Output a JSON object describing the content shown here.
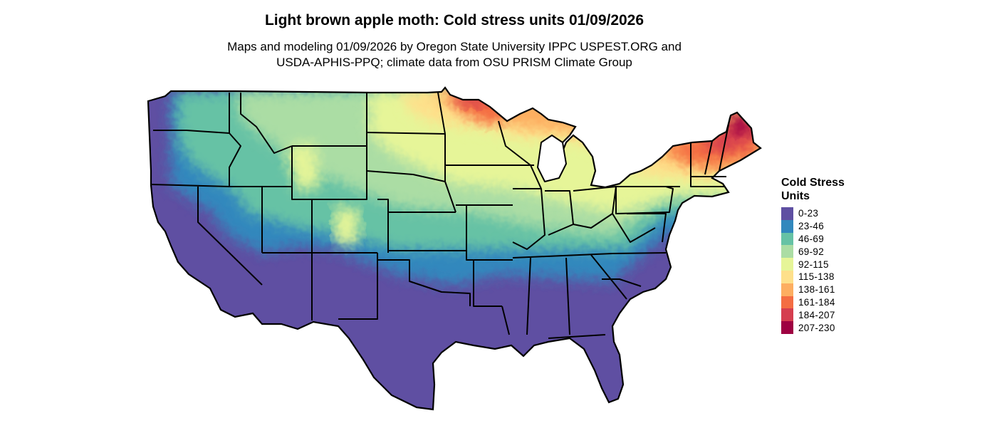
{
  "title": "Light brown apple moth: Cold stress units 01/09/2026",
  "subtitle_line1": "Maps and modeling 01/09/2026 by Oregon State University IPPC USPEST.ORG and",
  "subtitle_line2": "USDA-APHIS-PPQ; climate data from OSU PRISM Climate Group",
  "legend": {
    "title": "Cold Stress Units",
    "items": [
      {
        "label": "0-23",
        "color": "#5e4fa2"
      },
      {
        "label": "23-46",
        "color": "#3288bd"
      },
      {
        "label": "46-69",
        "color": "#66c2a5"
      },
      {
        "label": "69-92",
        "color": "#abdda4"
      },
      {
        "label": "92-115",
        "color": "#e6f598"
      },
      {
        "label": "115-138",
        "color": "#fee08b"
      },
      {
        "label": "138-161",
        "color": "#fdae61"
      },
      {
        "label": "161-184",
        "color": "#f46d43"
      },
      {
        "label": "184-207",
        "color": "#d53e4f"
      },
      {
        "label": "207-230",
        "color": "#9e0142"
      }
    ]
  }
}
